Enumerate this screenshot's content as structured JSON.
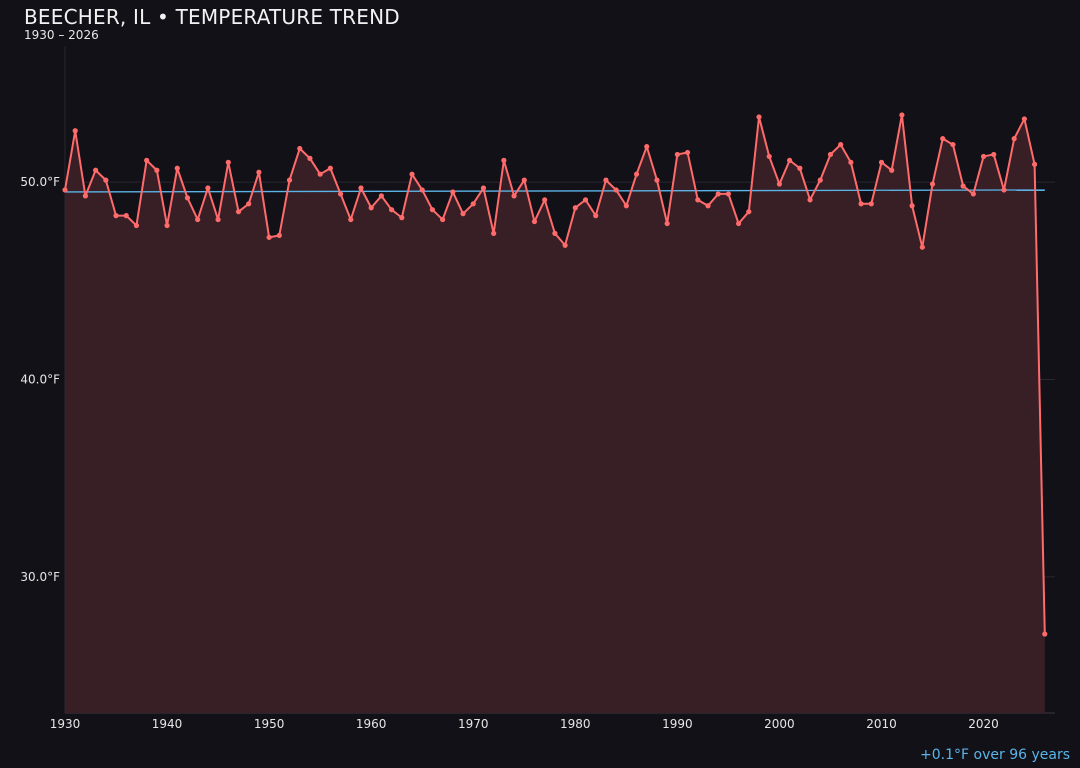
{
  "chart_data": {
    "type": "line",
    "title": "BEECHER, IL • TEMPERATURE TREND",
    "subtitle": "1930 – 2026",
    "xlabel": "",
    "ylabel": "",
    "xlim": [
      1930,
      2027
    ],
    "ylim": [
      23.1,
      57.3
    ],
    "grid": true,
    "x_ticks": [
      1930,
      1940,
      1950,
      1960,
      1970,
      1980,
      1990,
      2000,
      2010,
      2020
    ],
    "y_ticks": [
      30,
      40,
      50
    ],
    "y_tick_labels": [
      "30.0°F",
      "40.0°F",
      "50.0°F"
    ],
    "colors": {
      "series": "#ff6b6b",
      "fill": "#381f26",
      "trend": "#5ab4e8",
      "background": "#121118"
    },
    "series": [
      {
        "x": [
          1930,
          1931,
          1932,
          1933,
          1934,
          1935,
          1936,
          1937,
          1938,
          1939,
          1940,
          1941,
          1942,
          1943,
          1944,
          1945,
          1946,
          1947,
          1948,
          1949,
          1950,
          1951,
          1952,
          1953,
          1954,
          1955,
          1956,
          1957,
          1958,
          1959,
          1960,
          1961,
          1962,
          1963,
          1964,
          1965,
          1966,
          1967,
          1968,
          1969,
          1970,
          1971,
          1972,
          1973,
          1974,
          1975,
          1976,
          1977,
          1978,
          1979,
          1980,
          1981,
          1982,
          1983,
          1984,
          1985,
          1986,
          1987,
          1988,
          1989,
          1990,
          1991,
          1992,
          1993,
          1994,
          1995,
          1996,
          1997,
          1998,
          1999,
          2000,
          2001,
          2002,
          2003,
          2004,
          2005,
          2006,
          2007,
          2008,
          2009,
          2010,
          2011,
          2012,
          2013,
          2014,
          2015,
          2016,
          2017,
          2018,
          2019,
          2020,
          2021,
          2022,
          2023,
          2024,
          2025,
          2026
        ],
        "values": [
          49.6,
          52.6,
          49.3,
          50.6,
          50.1,
          48.3,
          48.3,
          47.8,
          51.1,
          50.6,
          47.8,
          50.7,
          49.2,
          48.1,
          49.7,
          48.1,
          51.0,
          48.5,
          48.9,
          50.5,
          47.2,
          47.3,
          50.1,
          51.7,
          51.2,
          50.4,
          50.7,
          49.4,
          48.1,
          49.7,
          48.7,
          49.3,
          48.6,
          48.2,
          50.4,
          49.6,
          48.6,
          48.1,
          49.5,
          48.4,
          48.9,
          49.7,
          47.4,
          51.1,
          49.3,
          50.1,
          48.0,
          49.1,
          47.4,
          46.8,
          48.7,
          49.1,
          48.3,
          50.1,
          49.6,
          48.8,
          50.4,
          51.8,
          50.1,
          47.9,
          51.4,
          51.5,
          49.1,
          48.8,
          49.4,
          49.4,
          47.9,
          48.5,
          53.3,
          51.3,
          49.9,
          51.1,
          50.7,
          49.1,
          50.1,
          51.4,
          51.9,
          51.0,
          48.9,
          48.9,
          51.0,
          50.6,
          53.4,
          48.8,
          46.7,
          49.9,
          52.2,
          51.9,
          49.8,
          49.4,
          51.3,
          51.4,
          49.6,
          52.2,
          53.2,
          50.9,
          27.1
        ]
      }
    ],
    "trend": {
      "x": [
        1930,
        2026
      ],
      "values": [
        49.5,
        49.6
      ]
    },
    "annotation": "+0.1°F over 96 years"
  }
}
